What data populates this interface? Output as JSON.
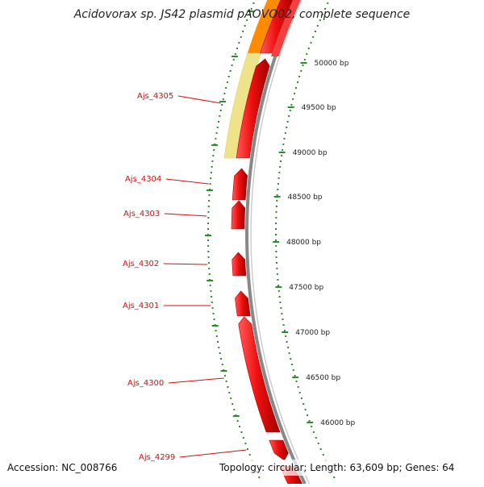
{
  "title": "Acidovorax sp. JS42 plasmid pAOVO02, complete sequence",
  "footer": {
    "accession": "Accession: NC_008766",
    "summary": "Topology: circular; Length: 63,609 bp; Genes: 64"
  },
  "colors": {
    "gene": "#ee1111",
    "gene_edge": "#b00000",
    "cds_orange": "#ff8c00",
    "feature_pale": "#eee38a",
    "label": "#d01010",
    "tick": "#2e8b2e",
    "backbone": "#888888"
  },
  "scale_labels": [
    "50000 bp",
    "49500 bp",
    "49000 bp",
    "48500 bp",
    "48000 bp",
    "47500 bp",
    "47000 bp",
    "46500 bp",
    "46000 bp"
  ],
  "genes": [
    {
      "label": "Ajs_4305"
    },
    {
      "label": "Ajs_4304"
    },
    {
      "label": "Ajs_4303"
    },
    {
      "label": "Ajs_4302"
    },
    {
      "label": "Ajs_4301"
    },
    {
      "label": "Ajs_4300"
    },
    {
      "label": "Ajs_4299"
    }
  ]
}
